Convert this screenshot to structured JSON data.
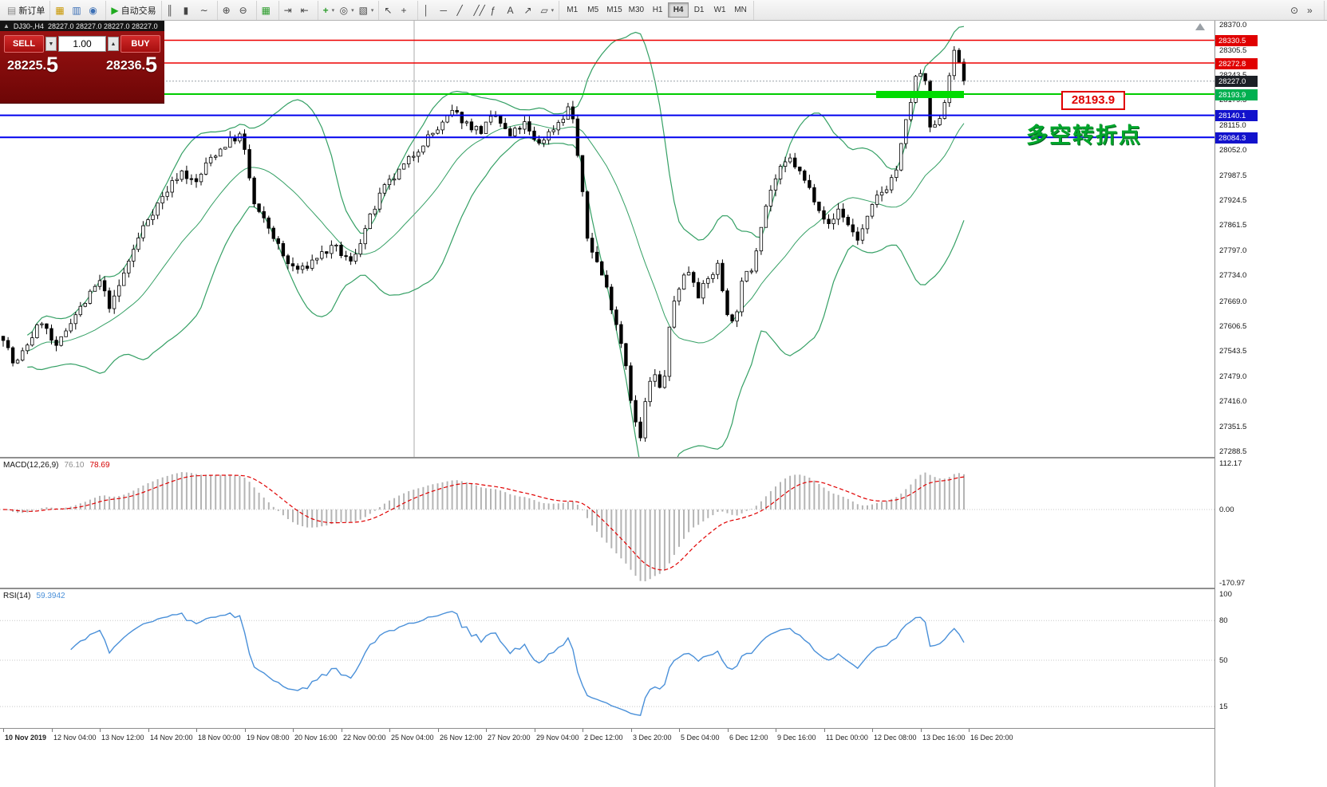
{
  "colors": {
    "band_green": "#35a065",
    "candle_up": "#ffffff",
    "candle_down": "#000000",
    "macd_hist": "#b4b4b4",
    "macd_signal": "#e00000",
    "rsi_line": "#4a90d9",
    "panel_red": "#8c0e0e",
    "line_red": "#ee0000",
    "line_green": "#00cc00",
    "line_blue": "#0000ee"
  },
  "toolbar": {
    "new_order": {
      "icon": "▤",
      "label": "新订单"
    },
    "quick_icons": [
      {
        "name": "toolbox-icon",
        "glyph": "▦",
        "style": "color:#c99700"
      },
      {
        "name": "market-watch-icon",
        "glyph": "▥",
        "style": "color:#3b6fb5"
      },
      {
        "name": "navigator-icon",
        "glyph": "◉",
        "style": "color:#3b6fb5"
      }
    ],
    "auto_trading": {
      "icon": "▶",
      "label": "自动交易"
    },
    "chart_type_icons": [
      {
        "name": "bar-chart-icon",
        "glyph": "║"
      },
      {
        "name": "candlestick-chart-icon",
        "glyph": "▮"
      },
      {
        "name": "line-chart-icon",
        "glyph": "∼"
      }
    ],
    "zoom_icons": [
      {
        "name": "zoom-in-icon",
        "glyph": "⊕"
      },
      {
        "name": "zoom-out-icon",
        "glyph": "⊖"
      }
    ],
    "window_icons": [
      {
        "name": "tile-windows-icon",
        "glyph": "▦",
        "style": "color:#2f9e2f"
      }
    ],
    "scroll_icons": [
      {
        "name": "auto-scroll-icon",
        "glyph": "⇥"
      },
      {
        "name": "chart-shift-icon",
        "glyph": "⇤"
      }
    ],
    "dropdown_icons": [
      {
        "name": "indicators-icon",
        "glyph": "+",
        "style": "color:#2f9e2f;font-weight:bold",
        "arrow": "▾"
      },
      {
        "name": "profiles-icon",
        "glyph": "◎",
        "arrow": "▾"
      },
      {
        "name": "templates-icon",
        "glyph": "▧",
        "arrow": "▾"
      }
    ],
    "cursor_icons": [
      {
        "name": "cursor-icon",
        "glyph": "↖"
      },
      {
        "name": "crosshair-icon",
        "glyph": "+"
      }
    ],
    "object_icons": [
      {
        "name": "vertical-line-icon",
        "glyph": "│"
      },
      {
        "name": "horizontal-line-icon",
        "glyph": "─"
      },
      {
        "name": "trendline-icon",
        "glyph": "╱"
      },
      {
        "name": "channel-icon",
        "glyph": "╱╱"
      },
      {
        "name": "fibonacci-icon",
        "glyph": "ƒ"
      },
      {
        "name": "text-icon",
        "glyph": "A"
      },
      {
        "name": "arrows-icon",
        "glyph": "↗"
      },
      {
        "name": "shapes-icon",
        "glyph": "▱",
        "arrow": "▾"
      }
    ],
    "timeframes": [
      {
        "label": "M1"
      },
      {
        "label": "M5"
      },
      {
        "label": "M15"
      },
      {
        "label": "M30"
      },
      {
        "label": "H1"
      },
      {
        "label": "H4",
        "active": true
      },
      {
        "label": "D1"
      },
      {
        "label": "W1"
      },
      {
        "label": "MN"
      }
    ],
    "right_icons": [
      {
        "name": "search-icon",
        "glyph": "⊙"
      },
      {
        "name": "overflow-icon",
        "glyph": "»"
      }
    ]
  },
  "symbol_bar": {
    "collapse_icon": "▲",
    "symbol": "DJ30-,H4",
    "ohlc": "28227.0 28227.0 28227.0 28227.0"
  },
  "trade_panel": {
    "sell_label": "SELL",
    "buy_label": "BUY",
    "volume": "1.00",
    "spin_down_icon": "▼",
    "spin_up_icon": "▲",
    "sell_price_main": "28225.",
    "sell_price_big": "5",
    "buy_price_main": "28236.",
    "buy_price_big": "5"
  },
  "annotations": {
    "price_flag": "28193.9",
    "turning_point": "多空转折点"
  },
  "hlines": [
    {
      "price": 28330.5,
      "color": "#ee0000",
      "width": 1.4
    },
    {
      "price": 28272.8,
      "color": "#ee0000",
      "width": 1.4
    },
    {
      "price": 28193.9,
      "color": "#00cc00",
      "width": 2
    },
    {
      "price": 28140.1,
      "color": "#0000ee",
      "width": 2
    },
    {
      "price": 28084.3,
      "color": "#0000ee",
      "width": 2
    }
  ],
  "price_axis": {
    "ticks": [
      28370.0,
      28305.5,
      28243.5,
      28179.5,
      28115.0,
      28052.0,
      27987.5,
      27924.5,
      27861.5,
      27797.0,
      27734.0,
      27669.0,
      27606.5,
      27543.5,
      27479.0,
      27416.0,
      27351.5,
      27288.5
    ],
    "badges": [
      {
        "value": "28330.5",
        "price": 28330.5,
        "bg": "#e00000"
      },
      {
        "value": "28272.8",
        "price": 28272.8,
        "bg": "#e00000"
      },
      {
        "value": "28227.0",
        "price": 28227.0,
        "bg": "#1c2026"
      },
      {
        "value": "28193.9",
        "price": 28193.9,
        "bg": "#00b050"
      },
      {
        "value": "28140.1",
        "price": 28140.1,
        "bg": "#1212cc"
      },
      {
        "value": "28084.3",
        "price": 28084.3,
        "bg": "#1212cc"
      }
    ]
  },
  "macd_panel": {
    "label": "MACD(12,26,9)",
    "value1": "76.10",
    "value2": "78.69",
    "axis": [
      "112.17",
      "0.00",
      "-170.97"
    ]
  },
  "rsi_panel": {
    "label": "RSI(14)",
    "value": "59.3942",
    "axis": [
      {
        "label": "100",
        "value": 100
      },
      {
        "label": "80",
        "value": 80
      },
      {
        "label": "50",
        "value": 50
      },
      {
        "label": "15",
        "value": 15
      }
    ],
    "levels": [
      80,
      50,
      15
    ]
  },
  "time_axis": {
    "labels": [
      "10 Nov 2019",
      "12 Nov 04:00",
      "13 Nov 12:00",
      "14 Nov 20:00",
      "18 Nov 00:00",
      "19 Nov 08:00",
      "20 Nov 16:00",
      "22 Nov 00:00",
      "25 Nov 04:00",
      "26 Nov 12:00",
      "27 Nov 20:00",
      "29 Nov 04:00",
      "2 Dec 12:00",
      "3 Dec 20:00",
      "5 Dec 04:00",
      "6 Dec 12:00",
      "9 Dec 16:00",
      "11 Dec 00:00",
      "12 Dec 08:00",
      "13 Dec 16:00",
      "16 Dec 20:00"
    ]
  },
  "chart_data": {
    "type": "candlestick",
    "symbol": "DJ30-",
    "timeframe": "H4",
    "current": {
      "open": 28227.0,
      "high": 28227.0,
      "low": 28227.0,
      "close": 28227.0,
      "bid": 28225.5,
      "ask": 28236.5
    },
    "y_range": [
      27274,
      28380
    ],
    "num_candles": 200,
    "bollinger": {
      "period": 20,
      "deviation": 2
    },
    "macd": {
      "fast": 12,
      "slow": 26,
      "signal": 9,
      "current_macd": 76.1,
      "current_signal": 78.69
    },
    "rsi": {
      "period": 14,
      "current": 59.3942
    },
    "levels": [
      28330.5,
      28272.8,
      28193.9,
      28140.1,
      28084.3
    ],
    "price_path": [
      [
        0.0,
        27580
      ],
      [
        0.012,
        27500
      ],
      [
        0.025,
        27560
      ],
      [
        0.04,
        27620
      ],
      [
        0.055,
        27545
      ],
      [
        0.07,
        27620
      ],
      [
        0.085,
        27665
      ],
      [
        0.1,
        27720
      ],
      [
        0.112,
        27650
      ],
      [
        0.128,
        27755
      ],
      [
        0.148,
        27870
      ],
      [
        0.168,
        27940
      ],
      [
        0.185,
        28000
      ],
      [
        0.2,
        27965
      ],
      [
        0.215,
        28030
      ],
      [
        0.235,
        28075
      ],
      [
        0.248,
        28090
      ],
      [
        0.262,
        27905
      ],
      [
        0.278,
        27850
      ],
      [
        0.295,
        27765
      ],
      [
        0.31,
        27745
      ],
      [
        0.328,
        27785
      ],
      [
        0.345,
        27805
      ],
      [
        0.362,
        27765
      ],
      [
        0.38,
        27870
      ],
      [
        0.395,
        27950
      ],
      [
        0.41,
        27990
      ],
      [
        0.425,
        28035
      ],
      [
        0.44,
        28080
      ],
      [
        0.455,
        28110
      ],
      [
        0.468,
        28150
      ],
      [
        0.482,
        28120
      ],
      [
        0.497,
        28100
      ],
      [
        0.512,
        28140
      ],
      [
        0.527,
        28085
      ],
      [
        0.542,
        28120
      ],
      [
        0.555,
        28065
      ],
      [
        0.568,
        28095
      ],
      [
        0.582,
        28135
      ],
      [
        0.591,
        28170
      ],
      [
        0.6,
        28000
      ],
      [
        0.608,
        27830
      ],
      [
        0.617,
        27775
      ],
      [
        0.627,
        27710
      ],
      [
        0.637,
        27625
      ],
      [
        0.647,
        27530
      ],
      [
        0.656,
        27380
      ],
      [
        0.663,
        27315
      ],
      [
        0.671,
        27455
      ],
      [
        0.678,
        27480
      ],
      [
        0.686,
        27430
      ],
      [
        0.696,
        27650
      ],
      [
        0.706,
        27725
      ],
      [
        0.715,
        27750
      ],
      [
        0.724,
        27685
      ],
      [
        0.734,
        27725
      ],
      [
        0.744,
        27760
      ],
      [
        0.752,
        27655
      ],
      [
        0.76,
        27605
      ],
      [
        0.77,
        27725
      ],
      [
        0.78,
        27755
      ],
      [
        0.79,
        27880
      ],
      [
        0.8,
        27960
      ],
      [
        0.81,
        28005
      ],
      [
        0.82,
        28030
      ],
      [
        0.83,
        27990
      ],
      [
        0.84,
        27950
      ],
      [
        0.85,
        27905
      ],
      [
        0.86,
        27855
      ],
      [
        0.87,
        27905
      ],
      [
        0.88,
        27860
      ],
      [
        0.89,
        27825
      ],
      [
        0.9,
        27880
      ],
      [
        0.91,
        27935
      ],
      [
        0.92,
        27960
      ],
      [
        0.93,
        28005
      ],
      [
        0.94,
        28125
      ],
      [
        0.95,
        28235
      ],
      [
        0.958,
        28255
      ],
      [
        0.966,
        28085
      ],
      [
        0.973,
        28125
      ],
      [
        0.981,
        28185
      ],
      [
        0.988,
        28300
      ],
      [
        0.994,
        28285
      ],
      [
        1.0,
        28227
      ]
    ]
  }
}
